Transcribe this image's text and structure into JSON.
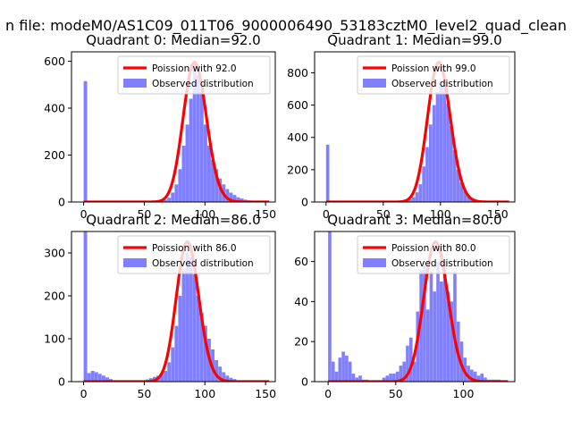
{
  "chart_data": {
    "suptitle": "n file: modeM0/AS1C09_011T06_9000006490_53183cztM0_level2_quad_clean",
    "colors": {
      "hist": "#8080ff",
      "line": "#ff0000"
    },
    "panels": [
      {
        "type": "bar",
        "title": "Quadrant 0: Median=92.0",
        "median": 92.0,
        "xlim": [
          -10,
          158
        ],
        "ylim": [
          0,
          640
        ],
        "xticks": [
          0,
          50,
          100,
          150
        ],
        "yticks": [
          0,
          200,
          400,
          600
        ],
        "bin_width": 3,
        "bins": [
          [
            0,
            515
          ],
          [
            42,
            1
          ],
          [
            45,
            1
          ],
          [
            48,
            2
          ],
          [
            51,
            2
          ],
          [
            54,
            3
          ],
          [
            57,
            4
          ],
          [
            60,
            3
          ],
          [
            63,
            5
          ],
          [
            66,
            9
          ],
          [
            69,
            18
          ],
          [
            72,
            40
          ],
          [
            75,
            75
          ],
          [
            78,
            140
          ],
          [
            81,
            240
          ],
          [
            84,
            330
          ],
          [
            87,
            440
          ],
          [
            90,
            590
          ],
          [
            93,
            540
          ],
          [
            96,
            470
          ],
          [
            99,
            330
          ],
          [
            102,
            240
          ],
          [
            105,
            180
          ],
          [
            108,
            140
          ],
          [
            111,
            100
          ],
          [
            114,
            75
          ],
          [
            117,
            55
          ],
          [
            120,
            40
          ],
          [
            123,
            30
          ],
          [
            126,
            20
          ],
          [
            129,
            15
          ],
          [
            132,
            10
          ],
          [
            135,
            7
          ],
          [
            138,
            4
          ],
          [
            141,
            3
          ],
          [
            144,
            2
          ],
          [
            147,
            1
          ]
        ],
        "legend": [
          "Poission with 92.0",
          "Observed distribution"
        ]
      },
      {
        "type": "bar",
        "title": "Quadrant 1: Median=99.0",
        "median": 99.0,
        "xlim": [
          -10,
          165
        ],
        "ylim": [
          0,
          930
        ],
        "xticks": [
          0,
          50,
          100,
          150
        ],
        "yticks": [
          0,
          200,
          400,
          600,
          800
        ],
        "bin_width": 3,
        "bins": [
          [
            0,
            355
          ],
          [
            45,
            1
          ],
          [
            48,
            2
          ],
          [
            51,
            2
          ],
          [
            54,
            3
          ],
          [
            57,
            3
          ],
          [
            60,
            4
          ],
          [
            63,
            5
          ],
          [
            66,
            6
          ],
          [
            69,
            9
          ],
          [
            72,
            16
          ],
          [
            75,
            30
          ],
          [
            78,
            60
          ],
          [
            81,
            110
          ],
          [
            84,
            220
          ],
          [
            87,
            340
          ],
          [
            90,
            480
          ],
          [
            93,
            600
          ],
          [
            96,
            680
          ],
          [
            99,
            745
          ],
          [
            102,
            720
          ],
          [
            105,
            610
          ],
          [
            108,
            470
          ],
          [
            111,
            320
          ],
          [
            114,
            200
          ],
          [
            117,
            120
          ],
          [
            120,
            70
          ],
          [
            123,
            40
          ],
          [
            126,
            25
          ],
          [
            129,
            15
          ],
          [
            132,
            10
          ],
          [
            135,
            6
          ],
          [
            138,
            4
          ],
          [
            141,
            3
          ],
          [
            144,
            2
          ],
          [
            147,
            1
          ],
          [
            150,
            1
          ]
        ],
        "legend": [
          "Poission with 99.0",
          "Observed distribution"
        ]
      },
      {
        "type": "bar",
        "title": "Quadrant 2: Median=86.0",
        "median": 86.0,
        "xlim": [
          -10,
          158
        ],
        "ylim": [
          0,
          350
        ],
        "xticks": [
          0,
          50,
          100,
          150
        ],
        "yticks": [
          0,
          100,
          200,
          300
        ],
        "bin_width": 3,
        "bins": [
          [
            0,
            350
          ],
          [
            3,
            20
          ],
          [
            6,
            25
          ],
          [
            9,
            22
          ],
          [
            12,
            18
          ],
          [
            15,
            14
          ],
          [
            18,
            10
          ],
          [
            21,
            6
          ],
          [
            24,
            3
          ],
          [
            27,
            2
          ],
          [
            30,
            1
          ],
          [
            45,
            2
          ],
          [
            48,
            3
          ],
          [
            51,
            5
          ],
          [
            54,
            8
          ],
          [
            57,
            11
          ],
          [
            60,
            14
          ],
          [
            63,
            18
          ],
          [
            66,
            25
          ],
          [
            69,
            45
          ],
          [
            72,
            80
          ],
          [
            75,
            130
          ],
          [
            78,
            200
          ],
          [
            81,
            260
          ],
          [
            84,
            300
          ],
          [
            87,
            290
          ],
          [
            90,
            250
          ],
          [
            93,
            200
          ],
          [
            96,
            160
          ],
          [
            99,
            130
          ],
          [
            102,
            100
          ],
          [
            105,
            75
          ],
          [
            108,
            50
          ],
          [
            111,
            35
          ],
          [
            114,
            22
          ],
          [
            117,
            14
          ],
          [
            120,
            9
          ],
          [
            123,
            6
          ],
          [
            126,
            3
          ],
          [
            129,
            2
          ]
        ],
        "legend": [
          "Poission with 86.0",
          "Observed distribution"
        ]
      },
      {
        "type": "bar",
        "title": "Quadrant 3: Median=80.0",
        "median": 80.0,
        "xlim": [
          -10,
          138
        ],
        "ylim": [
          0,
          75
        ],
        "xticks": [
          0,
          50,
          100
        ],
        "yticks": [
          0,
          20,
          40,
          60
        ],
        "bin_width": 2.5,
        "bins": [
          [
            0,
            75
          ],
          [
            2.5,
            10
          ],
          [
            5,
            5
          ],
          [
            7.5,
            12
          ],
          [
            10,
            15
          ],
          [
            12.5,
            13
          ],
          [
            15,
            10
          ],
          [
            17.5,
            4
          ],
          [
            20,
            2
          ],
          [
            22.5,
            3
          ],
          [
            25,
            1
          ],
          [
            27.5,
            1
          ],
          [
            40,
            2
          ],
          [
            42.5,
            3
          ],
          [
            45,
            4
          ],
          [
            47.5,
            4
          ],
          [
            50,
            5
          ],
          [
            52.5,
            8
          ],
          [
            55,
            10
          ],
          [
            57.5,
            18
          ],
          [
            60,
            22
          ],
          [
            62.5,
            10
          ],
          [
            65,
            35
          ],
          [
            67.5,
            56
          ],
          [
            70,
            58
          ],
          [
            72.5,
            36
          ],
          [
            75,
            55
          ],
          [
            77.5,
            45
          ],
          [
            80,
            60
          ],
          [
            82.5,
            50
          ],
          [
            85,
            60
          ],
          [
            87.5,
            45
          ],
          [
            90,
            40
          ],
          [
            92.5,
            55
          ],
          [
            95,
            30
          ],
          [
            97.5,
            20
          ],
          [
            100,
            12
          ],
          [
            102.5,
            8
          ],
          [
            105,
            6
          ],
          [
            107.5,
            5
          ],
          [
            110,
            3
          ],
          [
            112.5,
            4
          ],
          [
            115,
            2
          ],
          [
            117.5,
            1
          ],
          [
            120,
            1
          ],
          [
            122.5,
            1
          ],
          [
            125,
            1
          ]
        ],
        "legend": [
          "Poission with 80.0",
          "Observed distribution"
        ]
      }
    ]
  }
}
